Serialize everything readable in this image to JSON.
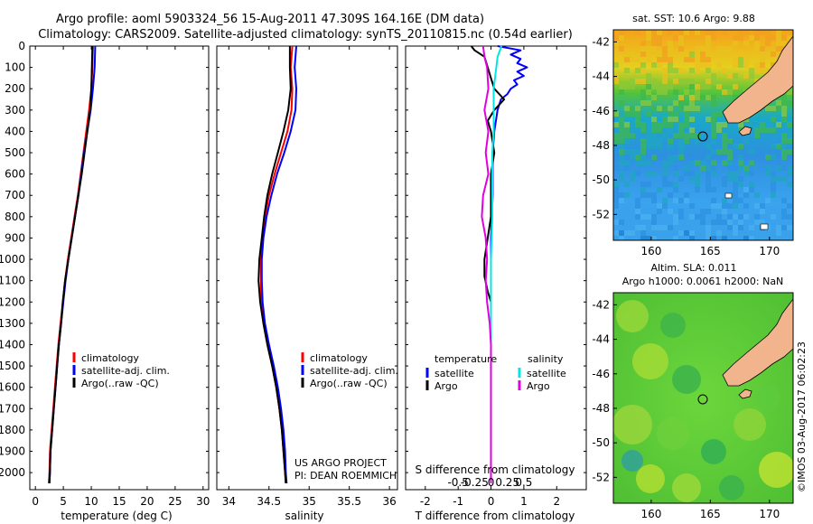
{
  "header": {
    "line1": "Argo profile: aoml 5903324_56 15-Aug-2011 47.309S 164.16E (DM data)",
    "line2": "Climatology: CARS2009. Satellite-adjusted climatology: synTS_20110815.nc (0.54d earlier)"
  },
  "credits": {
    "project": "US ARGO PROJECT",
    "pi": "PI: DEAN ROEMMICH"
  },
  "watermark": "©IMOS 03-Aug-2017 06:02:23",
  "colors": {
    "climatology": "#ff0000",
    "satellite": "#0000ff",
    "argo": "#000000",
    "temp_sat": "#0000ff",
    "sal_sat": "#00e5e5",
    "sal_argo": "#e000e0",
    "land": "#f2b48c"
  },
  "chart_data": [
    {
      "type": "line",
      "id": "temperature",
      "xlabel": "temperature (deg C)",
      "ylabel": "",
      "xlim": [
        -1,
        31
      ],
      "ylim": [
        2080,
        0
      ],
      "xticks": [
        0,
        5,
        10,
        15,
        20,
        25,
        30
      ],
      "yticks": [
        0,
        100,
        200,
        300,
        400,
        500,
        600,
        700,
        800,
        900,
        1000,
        1100,
        1200,
        1300,
        1400,
        1500,
        1600,
        1700,
        1800,
        1900,
        2000
      ],
      "legend": [
        "climatology",
        "satellite-adj. clim.",
        "Argo(..raw -QC)"
      ],
      "series": [
        {
          "name": "climatology",
          "points": [
            [
              10.3,
              0
            ],
            [
              10.2,
              100
            ],
            [
              10.0,
              200
            ],
            [
              9.6,
              300
            ],
            [
              9.1,
              400
            ],
            [
              8.6,
              500
            ],
            [
              8.1,
              600
            ],
            [
              7.6,
              700
            ],
            [
              7.0,
              800
            ],
            [
              6.4,
              900
            ],
            [
              5.8,
              1000
            ],
            [
              5.3,
              1100
            ],
            [
              4.9,
              1200
            ],
            [
              4.5,
              1300
            ],
            [
              4.1,
              1400
            ],
            [
              3.8,
              1500
            ],
            [
              3.5,
              1600
            ],
            [
              3.2,
              1700
            ],
            [
              2.9,
              1800
            ],
            [
              2.6,
              1900
            ],
            [
              2.5,
              2000
            ],
            [
              2.4,
              2050
            ]
          ]
        },
        {
          "name": "satellite-adj. clim.",
          "points": [
            [
              10.7,
              0
            ],
            [
              10.6,
              100
            ],
            [
              10.3,
              200
            ],
            [
              9.9,
              300
            ],
            [
              9.3,
              400
            ],
            [
              8.7,
              500
            ],
            [
              8.2,
              600
            ],
            [
              7.7,
              700
            ],
            [
              7.1,
              800
            ],
            [
              6.5,
              900
            ],
            [
              5.9,
              1000
            ],
            [
              5.4,
              1100
            ],
            [
              5.0,
              1200
            ],
            [
              4.6,
              1300
            ],
            [
              4.2,
              1400
            ],
            [
              3.9,
              1500
            ],
            [
              3.6,
              1600
            ],
            [
              3.3,
              1700
            ],
            [
              3.0,
              1800
            ],
            [
              2.7,
              1900
            ],
            [
              2.6,
              2000
            ],
            [
              2.5,
              2050
            ]
          ]
        },
        {
          "name": "Argo(..raw -QC)",
          "points": [
            [
              10.2,
              0
            ],
            [
              10.1,
              100
            ],
            [
              10.0,
              200
            ],
            [
              9.8,
              300
            ],
            [
              9.3,
              400
            ],
            [
              8.8,
              500
            ],
            [
              8.3,
              600
            ],
            [
              7.7,
              700
            ],
            [
              7.1,
              800
            ],
            [
              6.5,
              900
            ],
            [
              5.9,
              1000
            ],
            [
              5.3,
              1100
            ],
            [
              4.9,
              1200
            ],
            [
              4.6,
              1300
            ],
            [
              4.2,
              1400
            ],
            [
              3.9,
              1500
            ],
            [
              3.6,
              1600
            ],
            [
              3.3,
              1700
            ],
            [
              3.0,
              1800
            ],
            [
              2.7,
              1900
            ],
            [
              2.6,
              2000
            ],
            [
              2.5,
              2050
            ]
          ]
        }
      ]
    },
    {
      "type": "line",
      "id": "salinity",
      "xlabel": "salinity",
      "ylabel": "",
      "xlim": [
        33.85,
        36.1
      ],
      "ylim": [
        2080,
        0
      ],
      "xticks": [
        34,
        34.5,
        35,
        35.5,
        36
      ],
      "legend": [
        "climatology",
        "satellite-adj. clim.",
        "Argo(..raw -QC)"
      ],
      "series": [
        {
          "name": "climatology",
          "points": [
            [
              34.79,
              0
            ],
            [
              34.77,
              100
            ],
            [
              34.79,
              200
            ],
            [
              34.78,
              300
            ],
            [
              34.73,
              400
            ],
            [
              34.65,
              500
            ],
            [
              34.57,
              600
            ],
            [
              34.5,
              700
            ],
            [
              34.45,
              800
            ],
            [
              34.42,
              900
            ],
            [
              34.4,
              1000
            ],
            [
              34.4,
              1100
            ],
            [
              34.4,
              1200
            ],
            [
              34.43,
              1300
            ],
            [
              34.48,
              1400
            ],
            [
              34.54,
              1500
            ],
            [
              34.59,
              1600
            ],
            [
              34.63,
              1700
            ],
            [
              34.66,
              1800
            ],
            [
              34.68,
              1900
            ],
            [
              34.7,
              2000
            ],
            [
              34.71,
              2050
            ]
          ]
        },
        {
          "name": "satellite-adj. clim.",
          "points": [
            [
              34.84,
              0
            ],
            [
              34.82,
              100
            ],
            [
              34.84,
              200
            ],
            [
              34.83,
              300
            ],
            [
              34.77,
              400
            ],
            [
              34.69,
              500
            ],
            [
              34.6,
              600
            ],
            [
              34.53,
              700
            ],
            [
              34.47,
              800
            ],
            [
              34.43,
              900
            ],
            [
              34.41,
              1000
            ],
            [
              34.41,
              1100
            ],
            [
              34.42,
              1200
            ],
            [
              34.45,
              1300
            ],
            [
              34.5,
              1400
            ],
            [
              34.56,
              1500
            ],
            [
              34.61,
              1600
            ],
            [
              34.65,
              1700
            ],
            [
              34.68,
              1800
            ],
            [
              34.7,
              1900
            ],
            [
              34.71,
              2000
            ],
            [
              34.72,
              2050
            ]
          ]
        },
        {
          "name": "Argo(..raw -QC)",
          "points": [
            [
              34.76,
              0
            ],
            [
              34.76,
              100
            ],
            [
              34.77,
              200
            ],
            [
              34.74,
              300
            ],
            [
              34.68,
              400
            ],
            [
              34.61,
              500
            ],
            [
              34.54,
              600
            ],
            [
              34.48,
              700
            ],
            [
              34.44,
              800
            ],
            [
              34.41,
              900
            ],
            [
              34.38,
              1000
            ],
            [
              34.37,
              1100
            ],
            [
              34.39,
              1200
            ],
            [
              34.43,
              1300
            ],
            [
              34.48,
              1400
            ],
            [
              34.54,
              1500
            ],
            [
              34.59,
              1600
            ],
            [
              34.63,
              1700
            ],
            [
              34.66,
              1800
            ],
            [
              34.68,
              1900
            ],
            [
              34.7,
              2000
            ],
            [
              34.71,
              2050
            ]
          ]
        }
      ]
    },
    {
      "type": "line",
      "id": "differences",
      "xlabel": "T difference from climatology",
      "xlabel2": "S difference from climatology",
      "xlim": [
        -2.6,
        2.9
      ],
      "ylim": [
        2080,
        0
      ],
      "xticks": [
        -2,
        -1,
        0,
        1,
        2
      ],
      "xticks_labels": [
        "-2",
        "-1",
        "0",
        "1",
        "2"
      ],
      "sticks_labels": [
        "-0.5",
        "-0.25",
        "0",
        "0.25",
        "0.5"
      ],
      "legend_groups": [
        {
          "title": "temperature",
          "items": [
            "satellite",
            "Argo"
          ]
        },
        {
          "title": "salinity",
          "items": [
            "satellite",
            "Argo"
          ]
        }
      ],
      "series": [
        {
          "name": "temperature satellite",
          "points": [
            [
              0.2,
              0
            ],
            [
              0.9,
              20
            ],
            [
              0.6,
              40
            ],
            [
              0.9,
              60
            ],
            [
              0.8,
              80
            ],
            [
              1.1,
              100
            ],
            [
              0.8,
              120
            ],
            [
              1.0,
              140
            ],
            [
              0.7,
              160
            ],
            [
              0.8,
              180
            ],
            [
              0.6,
              200
            ],
            [
              0.5,
              225
            ],
            [
              0.3,
              250
            ],
            [
              0.2,
              300
            ],
            [
              0.1,
              400
            ],
            [
              0.05,
              500
            ],
            [
              0.05,
              700
            ],
            [
              0.0,
              900
            ],
            [
              0.0,
              1100
            ],
            [
              0.0,
              1300
            ],
            [
              0.0,
              1500
            ],
            [
              0.0,
              1700
            ],
            [
              0.0,
              1900
            ],
            [
              0.0,
              2050
            ]
          ]
        },
        {
          "name": "temperature Argo",
          "points": [
            [
              -0.6,
              0
            ],
            [
              -0.5,
              20
            ],
            [
              -0.2,
              50
            ],
            [
              -0.1,
              100
            ],
            [
              0.0,
              150
            ],
            [
              0.1,
              200
            ],
            [
              0.4,
              250
            ],
            [
              0.1,
              300
            ],
            [
              -0.1,
              350
            ],
            [
              0.0,
              400
            ],
            [
              0.1,
              500
            ],
            [
              0.0,
              600
            ],
            [
              0.0,
              700
            ],
            [
              0.0,
              800
            ],
            [
              -0.1,
              900
            ],
            [
              -0.2,
              1000
            ],
            [
              -0.2,
              1080
            ],
            [
              -0.1,
              1150
            ],
            [
              0.0,
              1200
            ],
            [
              0.0,
              1300
            ],
            [
              0.0,
              1500
            ],
            [
              0.0,
              1700
            ],
            [
              0.0,
              1900
            ],
            [
              0.0,
              2050
            ]
          ]
        },
        {
          "name": "salinity satellite",
          "points": [
            [
              0.08,
              0
            ],
            [
              0.05,
              50
            ],
            [
              0.04,
              100
            ],
            [
              0.02,
              200
            ],
            [
              0.02,
              300
            ],
            [
              0.02,
              400
            ],
            [
              0.01,
              500
            ],
            [
              0.01,
              600
            ],
            [
              0.01,
              800
            ],
            [
              0.0,
              1000
            ],
            [
              0.0,
              1200
            ],
            [
              0.0,
              1400
            ],
            [
              0.0,
              1600
            ],
            [
              0.0,
              1800
            ],
            [
              0.0,
              2050
            ]
          ]
        },
        {
          "name": "salinity Argo",
          "points": [
            [
              -0.06,
              0
            ],
            [
              -0.05,
              50
            ],
            [
              -0.03,
              100
            ],
            [
              -0.02,
              200
            ],
            [
              -0.05,
              300
            ],
            [
              -0.02,
              400
            ],
            [
              -0.04,
              500
            ],
            [
              -0.02,
              600
            ],
            [
              -0.06,
              700
            ],
            [
              -0.07,
              800
            ],
            [
              -0.04,
              900
            ],
            [
              -0.03,
              1000
            ],
            [
              -0.04,
              1100
            ],
            [
              -0.03,
              1200
            ],
            [
              -0.01,
              1300
            ],
            [
              0.0,
              1400
            ],
            [
              0.0,
              1600
            ],
            [
              0.0,
              1800
            ],
            [
              0.0,
              2050
            ]
          ]
        }
      ]
    },
    {
      "type": "heatmap",
      "id": "sst_map",
      "title": "sat. SST: 10.6  Argo: 9.88",
      "xlim": [
        156.8,
        172
      ],
      "ylim": [
        -53.5,
        -41.3
      ],
      "xticks": [
        160,
        165,
        170
      ],
      "yticks": [
        -42,
        -44,
        -46,
        -48,
        -50,
        -52
      ]
    },
    {
      "type": "heatmap",
      "id": "sla_map",
      "title": "Altim. SLA: 0.011",
      "title2": "Argo h1000: 0.0061 h2000: NaN",
      "xlim": [
        156.8,
        172
      ],
      "ylim": [
        -53.5,
        -41.3
      ],
      "xticks": [
        160,
        165,
        170
      ],
      "yticks": [
        -42,
        -44,
        -46,
        -48,
        -50,
        -52
      ]
    }
  ]
}
